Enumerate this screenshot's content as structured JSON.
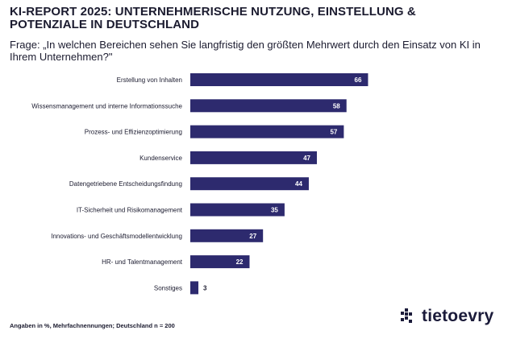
{
  "header": {
    "title": "KI-REPORT 2025: UNTERNEHMERISCHE NUTZUNG, EINSTELLUNG & POTENZIALE IN DEUTSCHLAND",
    "subtitle": "Frage: „In welchen Bereichen sehen Sie langfristig den größten Mehrwert durch den Einsatz von KI in Ihrem Unternehmen?\""
  },
  "footer": {
    "note": "Angaben in %, Mehrfachnennungen; Deutschland n = 200",
    "logo_text": "tietoevry"
  },
  "colors": {
    "bar": "#2d2a6e",
    "label_inside": "#ffffff",
    "label_outside": "#1b1b2f",
    "text": "#1b1b2f"
  },
  "chart_data": {
    "type": "bar",
    "orientation": "horizontal",
    "title": "KI-REPORT 2025: UNTERNEHMERISCHE NUTZUNG, EINSTELLUNG & POTENZIALE IN DEUTSCHLAND",
    "xlabel": "",
    "ylabel": "",
    "xlim": [
      0,
      100
    ],
    "grid": false,
    "categories": [
      "Erstellung von Inhalten",
      "Wissensmanagement und interne Informationssuche",
      "Prozess- und Effizienzoptimierung",
      "Kundenservice",
      "Datengetriebene Entscheidungsfindung",
      "IT-Sicherheit und Risikomanagement",
      "Innovations- und Geschäftsmodellentwicklung",
      "HR- und Talentmanagement",
      "Sonstiges"
    ],
    "values": [
      66,
      58,
      57,
      47,
      44,
      35,
      27,
      22,
      3
    ]
  }
}
